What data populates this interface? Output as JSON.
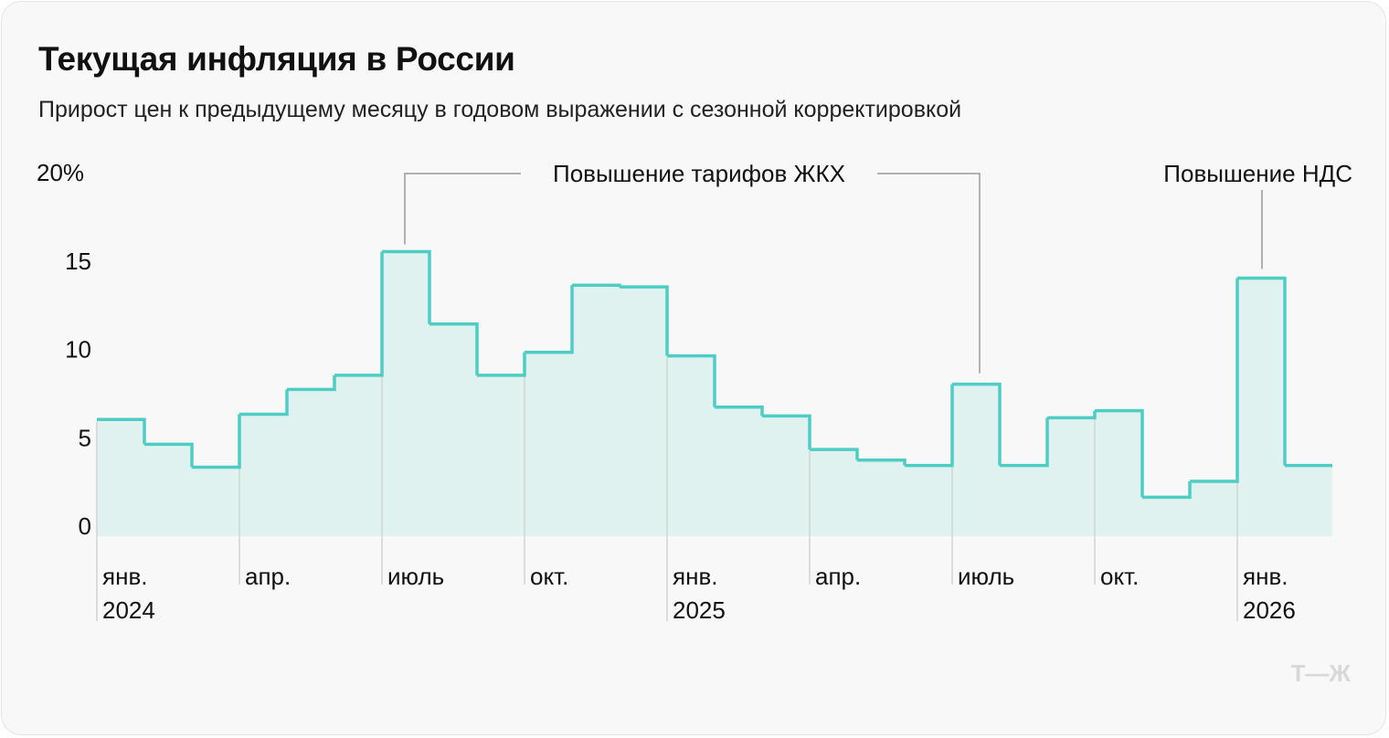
{
  "title": "Текущая инфляция в России",
  "subtitle": "Прирост цен к предыдущему месяцу в годовом выражении с сезонной корректировкой",
  "logo": "Т—Ж",
  "colors": {
    "line": "#4ecdc4",
    "fill": "#dff2ef",
    "background": "#f8f8f8"
  },
  "chart_data": {
    "type": "step-area",
    "title": "Текущая инфляция в России",
    "subtitle": "Прирост цен к предыдущему месяцу в годовом выражении с сезонной корректировкой",
    "months": [
      "2024-01",
      "2024-02",
      "2024-03",
      "2024-04",
      "2024-05",
      "2024-06",
      "2024-07",
      "2024-08",
      "2024-09",
      "2024-10",
      "2024-11",
      "2024-12",
      "2025-01",
      "2025-02",
      "2025-03",
      "2025-04",
      "2025-05",
      "2025-06",
      "2025-07",
      "2025-08",
      "2025-09",
      "2025-10",
      "2025-11",
      "2025-12",
      "2026-01",
      "2026-02"
    ],
    "values": [
      6.6,
      5.2,
      3.9,
      6.9,
      8.3,
      9.1,
      16.1,
      12.0,
      9.1,
      10.4,
      14.2,
      14.1,
      10.2,
      7.3,
      6.8,
      4.9,
      4.3,
      4.0,
      8.6,
      4.0,
      6.7,
      7.1,
      2.2,
      3.1,
      14.6,
      4.0
    ],
    "ylim": [
      0,
      20
    ],
    "yticks": [
      "0",
      "5",
      "10",
      "15",
      "20%"
    ],
    "xticks": [
      {
        "index": 0,
        "label": "янв.",
        "year": "2024"
      },
      {
        "index": 3,
        "label": "апр.",
        "year": ""
      },
      {
        "index": 6,
        "label": "июль",
        "year": ""
      },
      {
        "index": 9,
        "label": "окт.",
        "year": ""
      },
      {
        "index": 12,
        "label": "янв.",
        "year": "2025"
      },
      {
        "index": 15,
        "label": "апр.",
        "year": ""
      },
      {
        "index": 18,
        "label": "июль",
        "year": ""
      },
      {
        "index": 21,
        "label": "окт.",
        "year": ""
      },
      {
        "index": 24,
        "label": "янв.",
        "year": "2026"
      }
    ],
    "annotations": [
      {
        "text": "Повышение тарифов ЖКХ",
        "points": [
          6,
          18
        ]
      },
      {
        "text": "Повышение НДС",
        "points": [
          24
        ]
      }
    ],
    "grid": false
  }
}
